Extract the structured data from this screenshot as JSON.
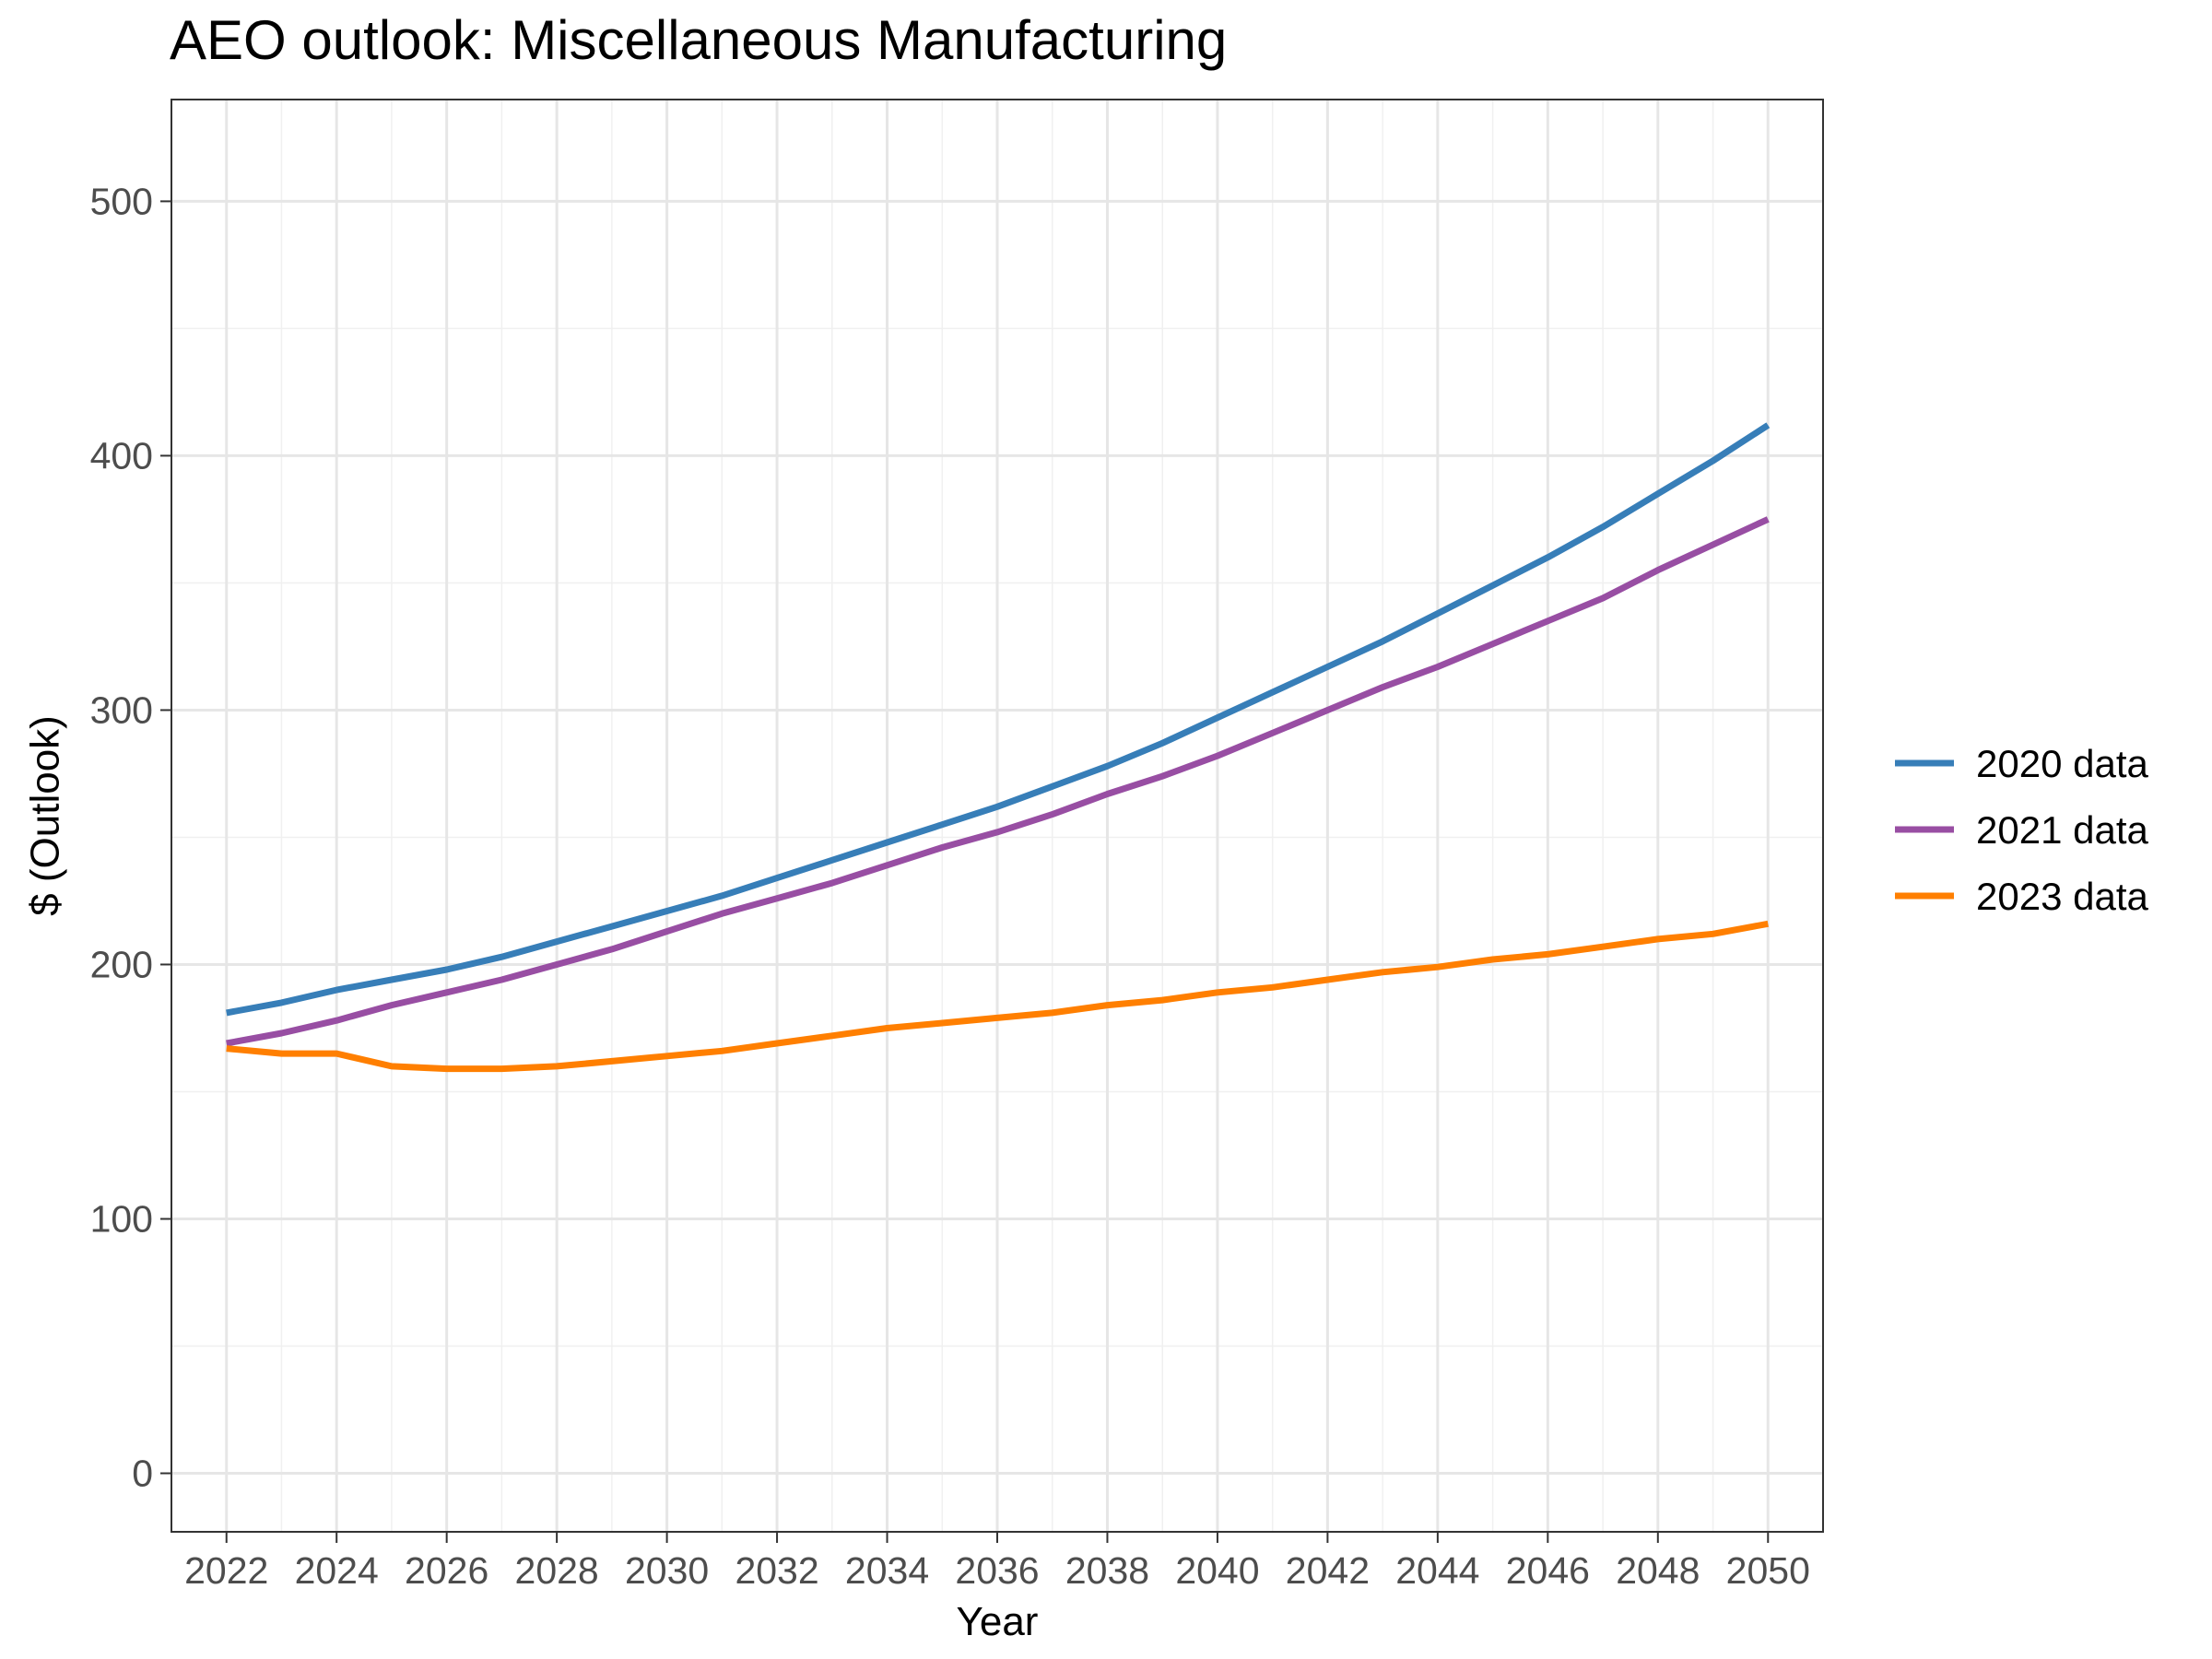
{
  "chart_data": {
    "type": "line",
    "title": "AEO outlook: Miscellaneous Manufacturing",
    "xlabel": "Year",
    "ylabel": "$ (Outlook)",
    "x": [
      2022,
      2023,
      2024,
      2025,
      2026,
      2027,
      2028,
      2029,
      2030,
      2031,
      2032,
      2033,
      2034,
      2035,
      2036,
      2037,
      2038,
      2039,
      2040,
      2041,
      2042,
      2043,
      2044,
      2045,
      2046,
      2047,
      2048,
      2049,
      2050
    ],
    "xlim": [
      2021,
      2051
    ],
    "ylim": [
      -23,
      540
    ],
    "x_ticks": [
      2022,
      2024,
      2026,
      2028,
      2030,
      2032,
      2034,
      2036,
      2038,
      2040,
      2042,
      2044,
      2046,
      2048,
      2050
    ],
    "y_ticks": [
      0,
      100,
      200,
      300,
      400,
      500
    ],
    "grid": true,
    "legend_position": "right",
    "series": [
      {
        "name": "2020 data",
        "color": "#377eb8",
        "values": [
          181,
          185,
          190,
          194,
          198,
          203,
          209,
          215,
          221,
          227,
          234,
          241,
          248,
          255,
          262,
          270,
          278,
          287,
          297,
          307,
          317,
          327,
          338,
          349,
          360,
          372,
          385,
          398,
          412
        ]
      },
      {
        "name": "2021 data",
        "color": "#984ea3",
        "values": [
          169,
          173,
          178,
          184,
          189,
          194,
          200,
          206,
          213,
          220,
          226,
          232,
          239,
          246,
          252,
          259,
          267,
          274,
          282,
          291,
          300,
          309,
          317,
          326,
          335,
          344,
          355,
          365,
          375
        ]
      },
      {
        "name": "2023 data",
        "color": "#ff7f00",
        "values": [
          167,
          165,
          165,
          160,
          159,
          159,
          160,
          162,
          164,
          166,
          169,
          172,
          175,
          177,
          179,
          181,
          184,
          186,
          189,
          191,
          194,
          197,
          199,
          202,
          204,
          207,
          210,
          212,
          216
        ]
      }
    ]
  }
}
